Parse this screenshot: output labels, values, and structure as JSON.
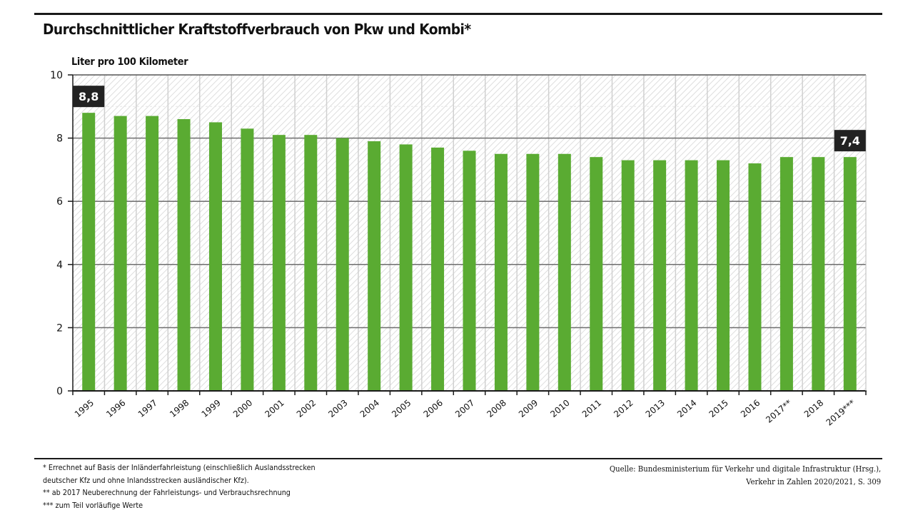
{
  "header": {
    "title": "Durchschnittlicher Kraftstoffverbrauch von Pkw und Kombi*"
  },
  "colors": {
    "bar": "#5aab32",
    "label_box": "#222222",
    "label_text": "#ffffff",
    "gridline_major": "#6e6e6e",
    "gridline_vertical": "#d0d0d0",
    "hatch": "#d6d6d6",
    "axis": "#1a1a1a"
  },
  "chart_data": {
    "type": "bar",
    "title": "Durchschnittlicher Kraftstoffverbrauch von Pkw und Kombi*",
    "xlabel": "",
    "ylabel": "Liter pro 100 Kilometer",
    "ylim": [
      0,
      10
    ],
    "yticks": [
      0,
      2,
      4,
      6,
      8,
      10
    ],
    "ytick_labels": [
      "0",
      "2",
      "4",
      "6",
      "8",
      "10"
    ],
    "grid": true,
    "categories": [
      "1995",
      "1996",
      "1997",
      "1998",
      "1999",
      "2000",
      "2001",
      "2002",
      "2003",
      "2004",
      "2005",
      "2006",
      "2007",
      "2008",
      "2009",
      "2010",
      "2011",
      "2012",
      "2013",
      "2014",
      "2015",
      "2016",
      "2017**",
      "2018",
      "2019***"
    ],
    "values": [
      8.8,
      8.7,
      8.7,
      8.6,
      8.5,
      8.3,
      8.1,
      8.1,
      8.0,
      7.9,
      7.8,
      7.7,
      7.6,
      7.5,
      7.5,
      7.5,
      7.4,
      7.3,
      7.3,
      7.3,
      7.3,
      7.2,
      7.4,
      7.4,
      7.4
    ],
    "annotations": [
      {
        "category": "1995",
        "text": "8,8"
      },
      {
        "category": "2019***",
        "text": "7,4"
      }
    ]
  },
  "footer": {
    "notes": [
      "* Errechnet auf Basis der Inländerfahrleistung (einschließlich Auslandsstrecken",
      "deutscher Kfz und ohne Inlandsstrecken ausländischer Kfz).",
      "** ab 2017 Neuberechnung der Fahrleistungs- und Verbrauchsrechnung",
      "*** zum Teil vorläufige Werte"
    ],
    "source": [
      "Quelle: Bundesministerium für Verkehr und digitale Infrastruktur (Hrsg.),",
      "Verkehr in Zahlen 2020/2021, S. 309"
    ]
  }
}
